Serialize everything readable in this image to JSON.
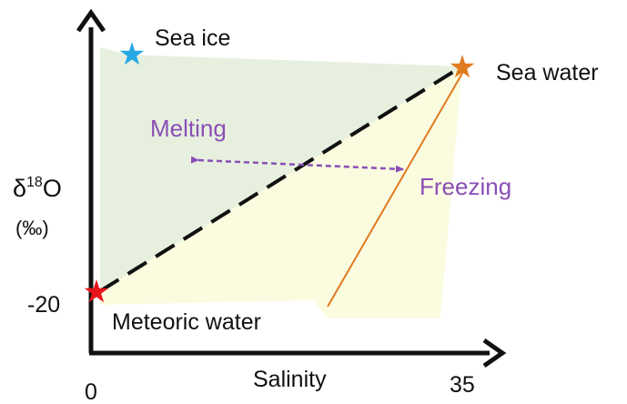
{
  "axes": {
    "y_label": {
      "symbol": "δ",
      "sup": "18",
      "element": "O"
    },
    "y_unit": "(‰)",
    "y_tick": "-20",
    "x_label": "Salinity",
    "x_tick_left": "0",
    "x_tick_right": "35"
  },
  "endmembers": {
    "sea_ice": {
      "label": "Sea ice",
      "color": "#27a7e4"
    },
    "sea_water": {
      "label": "Sea water",
      "color": "#e07b1f"
    },
    "meteoric_water": {
      "label": "Meteoric water",
      "color": "#e6141b"
    }
  },
  "processes": {
    "melting": "Melting",
    "freezing": "Freezing",
    "color": "#8a4fb5"
  },
  "regions": {
    "melting_fill": "#e7f0df",
    "freezing_fill": "#fbfbe0"
  },
  "mixing_line_color": "#111111",
  "freezing_line_color": "#e07b1f"
}
